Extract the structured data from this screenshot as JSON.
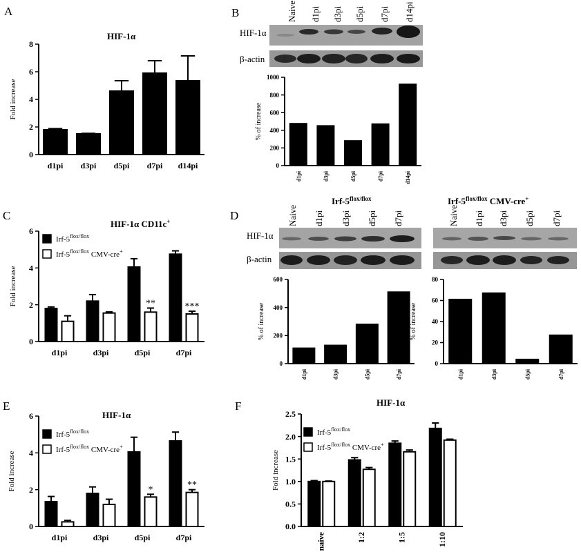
{
  "panel_letters": [
    "A",
    "B",
    "C",
    "D",
    "E",
    "F"
  ],
  "blots": {
    "b": {
      "lanes": [
        "Naive",
        "d1pi",
        "d3pi",
        "d5pi",
        "d7pi",
        "d14pi"
      ],
      "row_labels": [
        "HIF-1α",
        "β-actin"
      ]
    },
    "d_left": {
      "title": "Irf-5",
      "title_sup": "flox/flox",
      "lanes": [
        "Naive",
        "d1pi",
        "d3pi",
        "d5pi",
        "d7pi"
      ],
      "row_labels": [
        "HIF-1α",
        "β-actin"
      ]
    },
    "d_right": {
      "title": "Irf-5",
      "title_sup": "flox/flox",
      "title_tail": " CMV-cre",
      "title_tail_sup": "+",
      "lanes": [
        "Naive",
        "d1pi",
        "d3pi",
        "d5pi",
        "d7pi"
      ]
    }
  },
  "chart_data": [
    {
      "id": "A",
      "type": "bar",
      "title": "HIF-1α",
      "ylabel": "Fold increase",
      "xlabel": "",
      "categories": [
        "d1pi",
        "d3pi",
        "d5pi",
        "d7pi",
        "d14pi"
      ],
      "ylim": [
        0,
        8
      ],
      "yticks": [
        0,
        2,
        4,
        6,
        8
      ],
      "series": [
        {
          "values": [
            1.8,
            1.5,
            4.6,
            5.9,
            5.35
          ],
          "errors": [
            0.08,
            0.04,
            0.75,
            0.9,
            1.8
          ],
          "fill": "#000000"
        }
      ]
    },
    {
      "id": "B",
      "type": "bar",
      "title": "",
      "ylabel": "% of increase",
      "xlabel": "",
      "categories": [
        "d1pi",
        "d3pi",
        "d5pi",
        "d7pi",
        "d14pi"
      ],
      "ylim": [
        0,
        1000
      ],
      "yticks": [
        0,
        200,
        400,
        600,
        800,
        1000
      ],
      "series": [
        {
          "values": [
            475,
            450,
            280,
            470,
            920
          ],
          "fill": "#000000"
        }
      ]
    },
    {
      "id": "C",
      "type": "bar",
      "title": "HIF-1α CD11c",
      "title_sup": "+",
      "ylabel": "Fold increase",
      "xlabel": "",
      "categories": [
        "d1pi",
        "d3pi",
        "d5pi",
        "d7pi"
      ],
      "ylim": [
        0,
        6
      ],
      "yticks": [
        0,
        2,
        4,
        6
      ],
      "series": [
        {
          "name": "Irf-5",
          "name_sup": "flox/flox",
          "values": [
            1.8,
            2.2,
            4.05,
            4.75
          ],
          "errors": [
            0.08,
            0.35,
            0.45,
            0.18
          ],
          "fill": "#000000"
        },
        {
          "name": "Irf-5",
          "name_sup": "flox/flox",
          "name_tail": " CMV-cre",
          "name_tail_sup": "+",
          "values": [
            1.1,
            1.55,
            1.6,
            1.5
          ],
          "errors": [
            0.3,
            0.06,
            0.22,
            0.15
          ],
          "fill": "#ffffff"
        }
      ],
      "annotations": [
        {
          "category": 2,
          "series": 1,
          "text": "**"
        },
        {
          "category": 3,
          "series": 1,
          "text": "***"
        }
      ]
    },
    {
      "id": "D1",
      "type": "bar",
      "title": "",
      "ylabel": "% of increase",
      "xlabel": "",
      "categories": [
        "d1pi",
        "d3pi",
        "d5pi",
        "d7pi"
      ],
      "ylim": [
        0,
        600
      ],
      "yticks": [
        0,
        200,
        400,
        600
      ],
      "series": [
        {
          "values": [
            110,
            130,
            280,
            510
          ],
          "fill": "#000000"
        }
      ]
    },
    {
      "id": "D2",
      "type": "bar",
      "title": "",
      "ylabel": "% of increase",
      "xlabel": "",
      "categories": [
        "d1pi",
        "d3pi",
        "d5pi",
        "d7pi"
      ],
      "ylim": [
        0,
        80
      ],
      "yticks": [
        0,
        20,
        40,
        60,
        80
      ],
      "series": [
        {
          "values": [
            61,
            67,
            4,
            27
          ],
          "fill": "#000000"
        }
      ]
    },
    {
      "id": "E",
      "type": "bar",
      "title": "HIF-1α",
      "ylabel": "Fold increase",
      "xlabel": "",
      "categories": [
        "d1pi",
        "d3pi",
        "d5pi",
        "d7pi"
      ],
      "ylim": [
        0,
        6
      ],
      "yticks": [
        0,
        2,
        4,
        6
      ],
      "series": [
        {
          "name": "Irf-5",
          "name_sup": "flox/flox",
          "values": [
            1.35,
            1.8,
            4.05,
            4.65
          ],
          "errors": [
            0.28,
            0.35,
            0.8,
            0.48
          ],
          "fill": "#000000"
        },
        {
          "name": "Irf-5",
          "name_sup": "flox/flox",
          "name_tail": " CMV-cre",
          "name_tail_sup": "+",
          "values": [
            0.25,
            1.2,
            1.6,
            1.85
          ],
          "errors": [
            0.08,
            0.28,
            0.15,
            0.15
          ],
          "fill": "#ffffff"
        }
      ],
      "annotations": [
        {
          "category": 2,
          "series": 1,
          "text": "*"
        },
        {
          "category": 3,
          "series": 1,
          "text": "**"
        }
      ]
    },
    {
      "id": "F",
      "type": "bar",
      "title": "HIF-1α",
      "ylabel": "Fold increase",
      "xlabel": "",
      "categories": [
        "naive",
        "1:2",
        "1:5",
        "1:10"
      ],
      "ylim": [
        0,
        2.5
      ],
      "yticks": [
        0.0,
        0.5,
        1.0,
        1.5,
        2.0,
        2.5
      ],
      "series": [
        {
          "name": "Irf-5",
          "name_sup": "flox/flox",
          "values": [
            1.0,
            1.48,
            1.85,
            2.18
          ],
          "errors": [
            0.02,
            0.05,
            0.05,
            0.12
          ],
          "fill": "#000000"
        },
        {
          "name": "Irf-5",
          "name_sup": "flox/flox",
          "name_tail": " CMV-cre",
          "name_tail_sup": "+",
          "values": [
            1.0,
            1.27,
            1.66,
            1.92
          ],
          "errors": [
            0.01,
            0.04,
            0.04,
            0.02
          ],
          "fill": "#ffffff"
        }
      ]
    }
  ]
}
